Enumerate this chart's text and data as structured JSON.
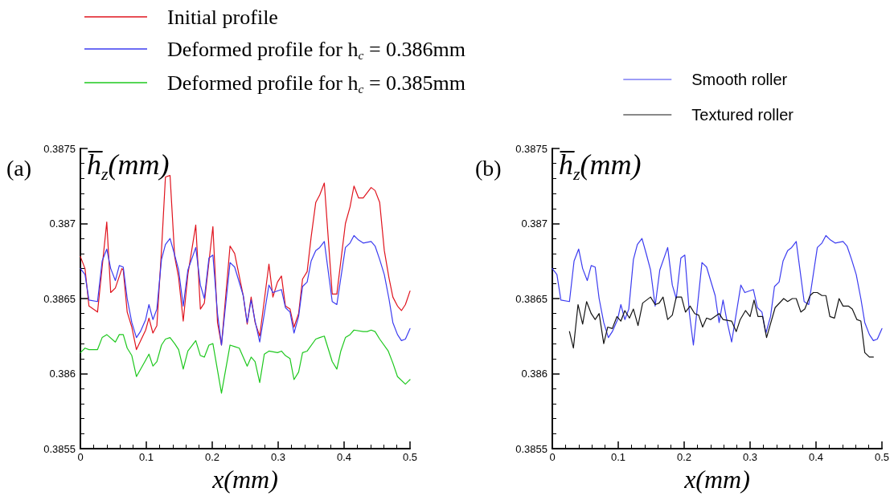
{
  "chart_data": [
    {
      "type": "line",
      "ylabel": "h̅$_{z}$(mm)",
      "xlabel": "x(mm)",
      "annotations": [
        "(a)"
      ],
      "xlim": [
        0,
        0.5
      ],
      "xticks": [
        0,
        0.1,
        0.2,
        0.3,
        0.4,
        0.5
      ],
      "ylim": [
        0.3855,
        0.3875
      ],
      "yticks": [
        0.3855,
        0.386,
        0.3865,
        0.387,
        0.3875
      ],
      "grid": false,
      "legend": "top",
      "marker": "none",
      "line_style": "solid",
      "series": [
        {
          "name": "Initial profile",
          "color": "#e0141e",
          "x": [
            0,
            0.007,
            0.013,
            0.026,
            0.04,
            0.046,
            0.053,
            0.063,
            0.065,
            0.071,
            0.078,
            0.085,
            0.099,
            0.104,
            0.11,
            0.116,
            0.123,
            0.129,
            0.136,
            0.143,
            0.149,
            0.156,
            0.163,
            0.175,
            0.182,
            0.188,
            0.201,
            0.208,
            0.214,
            0.227,
            0.234,
            0.247,
            0.253,
            0.259,
            0.265,
            0.272,
            0.286,
            0.292,
            0.299,
            0.305,
            0.311,
            0.318,
            0.324,
            0.331,
            0.337,
            0.344,
            0.35,
            0.357,
            0.363,
            0.37,
            0.382,
            0.389,
            0.402,
            0.409,
            0.415,
            0.422,
            0.429,
            0.441,
            0.447,
            0.454,
            0.461,
            0.468,
            0.474,
            0.481,
            0.487,
            0.493,
            0.5
          ],
          "values": [
            0.38678,
            0.3867,
            0.38645,
            0.38641,
            0.38701,
            0.38654,
            0.38657,
            0.3867,
            0.38669,
            0.38641,
            0.38631,
            0.38616,
            0.38629,
            0.38637,
            0.38627,
            0.38632,
            0.38682,
            0.38731,
            0.38732,
            0.38678,
            0.38664,
            0.38635,
            0.38666,
            0.38699,
            0.38643,
            0.38647,
            0.38698,
            0.38634,
            0.38619,
            0.38685,
            0.3868,
            0.38652,
            0.38633,
            0.38651,
            0.38634,
            0.38625,
            0.38673,
            0.38651,
            0.38661,
            0.38665,
            0.38645,
            0.38643,
            0.38631,
            0.3864,
            0.38663,
            0.38668,
            0.38691,
            0.38714,
            0.38719,
            0.38727,
            0.38653,
            0.38653,
            0.387,
            0.38711,
            0.38725,
            0.38717,
            0.38717,
            0.38724,
            0.38722,
            0.38714,
            0.38682,
            0.38664,
            0.38651,
            0.38645,
            0.38642,
            0.38646,
            0.38655
          ]
        },
        {
          "name": "Deformed profile for h$_{c}$ = 0.386mm",
          "color": "#3c3cf0",
          "x": [
            0,
            0.007,
            0.013,
            0.026,
            0.033,
            0.04,
            0.046,
            0.053,
            0.059,
            0.065,
            0.071,
            0.078,
            0.085,
            0.091,
            0.099,
            0.104,
            0.11,
            0.116,
            0.123,
            0.129,
            0.136,
            0.143,
            0.149,
            0.156,
            0.163,
            0.175,
            0.182,
            0.188,
            0.195,
            0.201,
            0.208,
            0.214,
            0.227,
            0.234,
            0.247,
            0.253,
            0.259,
            0.265,
            0.272,
            0.286,
            0.292,
            0.305,
            0.311,
            0.318,
            0.324,
            0.331,
            0.337,
            0.344,
            0.35,
            0.357,
            0.363,
            0.37,
            0.382,
            0.389,
            0.402,
            0.409,
            0.415,
            0.422,
            0.429,
            0.441,
            0.447,
            0.454,
            0.461,
            0.468,
            0.474,
            0.481,
            0.487,
            0.493,
            0.5
          ],
          "values": [
            0.3867,
            0.38666,
            0.38649,
            0.38648,
            0.38675,
            0.38683,
            0.3867,
            0.38662,
            0.38672,
            0.38671,
            0.3865,
            0.38634,
            0.38624,
            0.38628,
            0.38636,
            0.38646,
            0.38636,
            0.38643,
            0.38676,
            0.38686,
            0.3869,
            0.38679,
            0.38669,
            0.38645,
            0.38669,
            0.38684,
            0.38659,
            0.3865,
            0.38677,
            0.38679,
            0.3864,
            0.38619,
            0.38674,
            0.38671,
            0.38652,
            0.38634,
            0.38649,
            0.38635,
            0.38621,
            0.38659,
            0.38654,
            0.38656,
            0.38644,
            0.38641,
            0.38627,
            0.38638,
            0.38658,
            0.38661,
            0.38675,
            0.38682,
            0.38684,
            0.38688,
            0.38648,
            0.38646,
            0.38684,
            0.38687,
            0.38692,
            0.38689,
            0.38687,
            0.38688,
            0.38685,
            0.38676,
            0.38666,
            0.3865,
            0.38634,
            0.38626,
            0.38622,
            0.38623,
            0.3863
          ]
        },
        {
          "name": "Deformed profile for h$_{c}$ = 0.385mm",
          "color": "#1ec81e",
          "x": [
            0,
            0.007,
            0.013,
            0.026,
            0.033,
            0.04,
            0.053,
            0.059,
            0.065,
            0.071,
            0.078,
            0.085,
            0.099,
            0.104,
            0.11,
            0.116,
            0.123,
            0.129,
            0.136,
            0.143,
            0.149,
            0.156,
            0.163,
            0.175,
            0.182,
            0.188,
            0.195,
            0.201,
            0.214,
            0.227,
            0.234,
            0.241,
            0.253,
            0.259,
            0.265,
            0.272,
            0.279,
            0.286,
            0.299,
            0.305,
            0.311,
            0.318,
            0.324,
            0.331,
            0.337,
            0.344,
            0.357,
            0.363,
            0.37,
            0.382,
            0.389,
            0.395,
            0.402,
            0.409,
            0.415,
            0.429,
            0.435,
            0.441,
            0.447,
            0.454,
            0.467,
            0.474,
            0.481,
            0.493,
            0.5
          ],
          "values": [
            0.38614,
            0.38617,
            0.38616,
            0.38616,
            0.38624,
            0.38626,
            0.38621,
            0.38626,
            0.38626,
            0.38617,
            0.38612,
            0.38598,
            0.38609,
            0.38613,
            0.38605,
            0.38608,
            0.38619,
            0.38623,
            0.38624,
            0.3862,
            0.38616,
            0.38603,
            0.38615,
            0.38622,
            0.38612,
            0.38611,
            0.38619,
            0.3862,
            0.38587,
            0.38619,
            0.38618,
            0.38617,
            0.38605,
            0.38611,
            0.38608,
            0.38594,
            0.38613,
            0.38615,
            0.38614,
            0.38615,
            0.38612,
            0.3861,
            0.38596,
            0.38601,
            0.38614,
            0.38615,
            0.38623,
            0.38624,
            0.38625,
            0.38608,
            0.38603,
            0.38615,
            0.38624,
            0.38626,
            0.38629,
            0.38628,
            0.38628,
            0.38629,
            0.38628,
            0.38623,
            0.38615,
            0.38607,
            0.38598,
            0.38593,
            0.38596
          ]
        }
      ]
    },
    {
      "type": "line",
      "ylabel": "h̅$_{z}$(mm)",
      "xlabel": "x(mm)",
      "annotations": [
        "(b)"
      ],
      "xlim": [
        0,
        0.5
      ],
      "xticks": [
        0,
        0.1,
        0.2,
        0.3,
        0.4,
        0.5
      ],
      "ylim": [
        0.3855,
        0.3875
      ],
      "yticks": [
        0.3855,
        0.386,
        0.3865,
        0.387,
        0.3875
      ],
      "grid": false,
      "legend": "top right",
      "marker": "none",
      "line_style": "solid",
      "series": [
        {
          "name": "Smooth roller",
          "color": "#3c3cf0",
          "x": [
            0,
            0.007,
            0.013,
            0.026,
            0.033,
            0.04,
            0.046,
            0.053,
            0.059,
            0.065,
            0.071,
            0.078,
            0.085,
            0.091,
            0.099,
            0.104,
            0.11,
            0.116,
            0.123,
            0.129,
            0.136,
            0.143,
            0.149,
            0.156,
            0.163,
            0.175,
            0.182,
            0.188,
            0.195,
            0.201,
            0.208,
            0.214,
            0.227,
            0.234,
            0.247,
            0.253,
            0.259,
            0.265,
            0.272,
            0.286,
            0.292,
            0.305,
            0.311,
            0.318,
            0.324,
            0.331,
            0.337,
            0.344,
            0.35,
            0.357,
            0.363,
            0.37,
            0.382,
            0.389,
            0.402,
            0.409,
            0.415,
            0.422,
            0.429,
            0.441,
            0.447,
            0.454,
            0.461,
            0.468,
            0.474,
            0.481,
            0.487,
            0.493,
            0.5
          ],
          "values": [
            0.3867,
            0.38666,
            0.38649,
            0.38648,
            0.38675,
            0.38683,
            0.3867,
            0.38662,
            0.38672,
            0.38671,
            0.3865,
            0.38634,
            0.38624,
            0.38628,
            0.38636,
            0.38646,
            0.38636,
            0.38643,
            0.38676,
            0.38686,
            0.3869,
            0.38679,
            0.38669,
            0.38645,
            0.38669,
            0.38684,
            0.38659,
            0.3865,
            0.38677,
            0.38679,
            0.3864,
            0.38619,
            0.38674,
            0.38671,
            0.38652,
            0.38634,
            0.38649,
            0.38635,
            0.38621,
            0.38659,
            0.38654,
            0.38656,
            0.38644,
            0.38641,
            0.38627,
            0.38638,
            0.38658,
            0.38661,
            0.38675,
            0.38682,
            0.38684,
            0.38688,
            0.38648,
            0.38646,
            0.38684,
            0.38687,
            0.38692,
            0.38689,
            0.38687,
            0.38688,
            0.38685,
            0.38676,
            0.38666,
            0.3865,
            0.38634,
            0.38626,
            0.38622,
            0.38623,
            0.3863
          ]
        },
        {
          "name": "Textured roller",
          "color": "#141414",
          "x": [
            0.026,
            0.032,
            0.039,
            0.046,
            0.052,
            0.059,
            0.065,
            0.071,
            0.078,
            0.084,
            0.091,
            0.098,
            0.104,
            0.11,
            0.117,
            0.123,
            0.13,
            0.137,
            0.149,
            0.156,
            0.162,
            0.168,
            0.175,
            0.182,
            0.188,
            0.196,
            0.202,
            0.209,
            0.216,
            0.222,
            0.228,
            0.234,
            0.24,
            0.253,
            0.259,
            0.272,
            0.279,
            0.285,
            0.293,
            0.3,
            0.306,
            0.312,
            0.319,
            0.325,
            0.338,
            0.351,
            0.357,
            0.364,
            0.37,
            0.377,
            0.383,
            0.391,
            0.396,
            0.402,
            0.409,
            0.415,
            0.421,
            0.428,
            0.435,
            0.441,
            0.449,
            0.455,
            0.462,
            0.468,
            0.474,
            0.481,
            0.487
          ],
          "values": [
            0.38628,
            0.38617,
            0.38646,
            0.38633,
            0.38648,
            0.3864,
            0.38636,
            0.3864,
            0.3862,
            0.38631,
            0.3863,
            0.38638,
            0.38635,
            0.38642,
            0.38637,
            0.38643,
            0.38632,
            0.38647,
            0.38651,
            0.38646,
            0.38647,
            0.38651,
            0.38636,
            0.38639,
            0.38651,
            0.38651,
            0.38641,
            0.38645,
            0.3864,
            0.38639,
            0.38631,
            0.38637,
            0.38636,
            0.3864,
            0.38636,
            0.38635,
            0.38628,
            0.38636,
            0.38642,
            0.38638,
            0.38649,
            0.38638,
            0.38638,
            0.38624,
            0.38644,
            0.3865,
            0.38648,
            0.3865,
            0.3865,
            0.38641,
            0.38643,
            0.38652,
            0.38654,
            0.38654,
            0.38652,
            0.38652,
            0.38638,
            0.38637,
            0.3865,
            0.38645,
            0.38645,
            0.38643,
            0.38636,
            0.38635,
            0.38614,
            0.38611,
            0.38611
          ]
        }
      ]
    }
  ]
}
